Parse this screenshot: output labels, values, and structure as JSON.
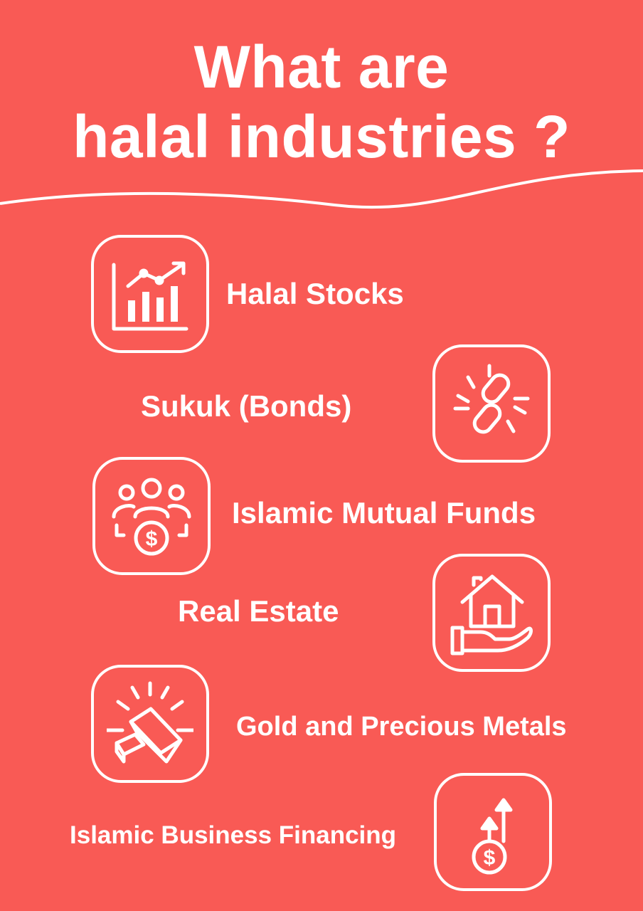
{
  "title": {
    "line1": "What are",
    "line2": "halal industries ?"
  },
  "colors": {
    "background": "#f95a55",
    "foreground": "#ffffff"
  },
  "items": [
    {
      "label": "Halal Stocks",
      "icon": "bar-chart-growth-icon"
    },
    {
      "label": "Sukuk (Bonds)",
      "icon": "chain-link-icon"
    },
    {
      "label": "Islamic Mutual Funds",
      "icon": "group-money-icon"
    },
    {
      "label": "Real Estate",
      "icon": "house-in-hand-icon"
    },
    {
      "label": "Gold and Precious Metals",
      "icon": "gold-bars-icon"
    },
    {
      "label": "Islamic Business Financing",
      "icon": "dollar-growth-icon"
    }
  ]
}
